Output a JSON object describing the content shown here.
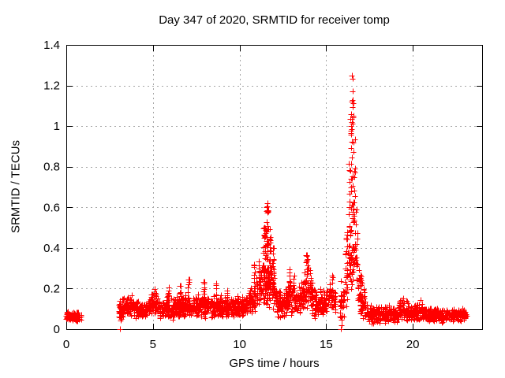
{
  "chart_data": {
    "type": "scatter",
    "title": "Day 347 of 2020, SRMTID for receiver tomp",
    "xlabel": "GPS time / hours",
    "ylabel": "SRMTID / TECUs",
    "xlim": [
      0,
      24
    ],
    "ylim": [
      0,
      1.4
    ],
    "xticks": [
      0,
      5,
      10,
      15,
      20
    ],
    "yticks": [
      0,
      0.2,
      0.4,
      0.6,
      0.8,
      1,
      1.2,
      1.4
    ],
    "grid": true,
    "legend": "none",
    "marker": "plus",
    "marker_size_px": 7,
    "notable_peaks": [
      {
        "x": 16.5,
        "y": 1.25,
        "note": "main spike ~16:30"
      },
      {
        "x": 11.6,
        "y": 0.62,
        "note": "secondary spike ~11:35"
      },
      {
        "x": 13.9,
        "y": 0.37
      },
      {
        "x": 5.0,
        "y": 0.22
      }
    ],
    "data_gaps": [
      [
        0.85,
        3.05
      ],
      [
        15.55,
        15.8
      ],
      [
        23.13,
        24
      ]
    ],
    "point_model": {
      "seed": 1347,
      "band_segments_format": "[x_start, x_end, count, y_low_start, y_low_end, y_high_start, y_high_end]",
      "band_segments": [
        [
          0.0,
          0.85,
          90,
          0.035,
          0.03,
          0.085,
          0.09
        ],
        [
          3.05,
          3.2,
          22,
          0.01,
          0.05,
          0.15,
          0.16
        ],
        [
          3.2,
          3.9,
          80,
          0.05,
          0.06,
          0.16,
          0.18
        ],
        [
          3.9,
          4.6,
          80,
          0.05,
          0.05,
          0.15,
          0.13
        ],
        [
          4.6,
          5.1,
          55,
          0.06,
          0.07,
          0.13,
          0.22
        ],
        [
          5.1,
          5.3,
          25,
          0.07,
          0.06,
          0.22,
          0.15
        ],
        [
          5.3,
          6.2,
          95,
          0.04,
          0.04,
          0.16,
          0.16
        ],
        [
          6.2,
          7.4,
          130,
          0.05,
          0.05,
          0.17,
          0.17
        ],
        [
          7.4,
          8.6,
          130,
          0.05,
          0.05,
          0.18,
          0.17
        ],
        [
          8.6,
          9.6,
          110,
          0.06,
          0.05,
          0.17,
          0.16
        ],
        [
          9.6,
          10.4,
          90,
          0.05,
          0.06,
          0.16,
          0.19
        ],
        [
          10.4,
          11.25,
          100,
          0.06,
          0.09,
          0.18,
          0.3
        ],
        [
          11.25,
          11.8,
          70,
          0.1,
          0.1,
          0.35,
          0.35
        ],
        [
          11.8,
          12.1,
          45,
          0.08,
          0.08,
          0.45,
          0.25
        ],
        [
          12.1,
          12.6,
          60,
          0.04,
          0.05,
          0.22,
          0.2
        ],
        [
          12.6,
          13.4,
          90,
          0.05,
          0.06,
          0.25,
          0.22
        ],
        [
          13.4,
          13.95,
          60,
          0.04,
          0.08,
          0.22,
          0.35
        ],
        [
          13.95,
          14.3,
          40,
          0.08,
          0.07,
          0.35,
          0.22
        ],
        [
          14.3,
          15.1,
          85,
          0.03,
          0.06,
          0.22,
          0.2
        ],
        [
          15.1,
          15.55,
          50,
          0.07,
          0.06,
          0.25,
          0.2
        ],
        [
          15.8,
          16.05,
          28,
          0.01,
          0.05,
          0.25,
          0.3
        ],
        [
          16.05,
          16.85,
          60,
          0.1,
          0.2,
          0.4,
          0.5
        ],
        [
          16.85,
          17.35,
          60,
          0.04,
          0.03,
          0.35,
          0.15
        ],
        [
          17.35,
          18.5,
          120,
          0.025,
          0.025,
          0.12,
          0.12
        ],
        [
          18.5,
          19.2,
          75,
          0.03,
          0.03,
          0.12,
          0.12
        ],
        [
          19.2,
          19.8,
          65,
          0.03,
          0.03,
          0.15,
          0.14
        ],
        [
          19.8,
          20.75,
          95,
          0.035,
          0.04,
          0.12,
          0.14
        ],
        [
          20.75,
          21.6,
          85,
          0.03,
          0.03,
          0.11,
          0.11
        ],
        [
          21.6,
          22.5,
          90,
          0.03,
          0.035,
          0.1,
          0.1
        ],
        [
          22.5,
          23.13,
          60,
          0.035,
          0.04,
          0.11,
          0.1
        ]
      ],
      "spike_columns_format": "[x_center, width, count, y_low, y_high]",
      "spike_columns": [
        [
          5.9,
          0.06,
          6,
          0.15,
          0.21
        ],
        [
          6.6,
          0.06,
          6,
          0.15,
          0.22
        ],
        [
          7.05,
          0.08,
          8,
          0.15,
          0.25
        ],
        [
          7.95,
          0.08,
          8,
          0.16,
          0.24
        ],
        [
          8.65,
          0.06,
          6,
          0.15,
          0.23
        ],
        [
          9.3,
          0.05,
          5,
          0.14,
          0.2
        ],
        [
          10.85,
          0.08,
          10,
          0.2,
          0.32
        ],
        [
          11.1,
          0.06,
          8,
          0.2,
          0.36
        ],
        [
          11.45,
          0.12,
          26,
          0.2,
          0.52
        ],
        [
          11.6,
          0.1,
          30,
          0.25,
          0.62
        ],
        [
          11.75,
          0.08,
          16,
          0.2,
          0.5
        ],
        [
          11.95,
          0.06,
          8,
          0.2,
          0.42
        ],
        [
          12.9,
          0.08,
          8,
          0.18,
          0.3
        ],
        [
          13.15,
          0.06,
          6,
          0.18,
          0.28
        ],
        [
          13.9,
          0.1,
          10,
          0.25,
          0.37
        ],
        [
          14.1,
          0.06,
          6,
          0.2,
          0.3
        ],
        [
          15.35,
          0.05,
          5,
          0.18,
          0.27
        ],
        [
          16.2,
          0.08,
          14,
          0.1,
          0.5
        ],
        [
          16.35,
          0.08,
          18,
          0.3,
          0.9
        ],
        [
          16.45,
          0.08,
          20,
          0.45,
          1.07
        ],
        [
          16.55,
          0.08,
          16,
          0.5,
          1.18
        ],
        [
          16.65,
          0.08,
          14,
          0.35,
          0.95
        ],
        [
          16.75,
          0.08,
          10,
          0.2,
          0.6
        ],
        [
          17.0,
          0.1,
          10,
          0.08,
          0.35
        ]
      ],
      "outlier_points": [
        [
          3.08,
          0.0
        ],
        [
          15.85,
          0.0
        ],
        [
          15.9,
          0.02
        ],
        [
          16.5,
          1.25
        ],
        [
          16.53,
          1.235
        ],
        [
          16.51,
          1.17
        ],
        [
          16.47,
          1.12
        ],
        [
          16.56,
          1.05
        ],
        [
          16.5,
          1.02
        ],
        [
          16.44,
          1.0
        ],
        [
          11.62,
          0.62
        ],
        [
          11.58,
          0.6
        ],
        [
          19.45,
          0.15
        ],
        [
          20.45,
          0.145
        ]
      ]
    }
  },
  "colors": {
    "marker": "#ff0000",
    "grid": "#a6a6a6",
    "axis": "#000000",
    "background": "#ffffff",
    "text": "#000000"
  }
}
